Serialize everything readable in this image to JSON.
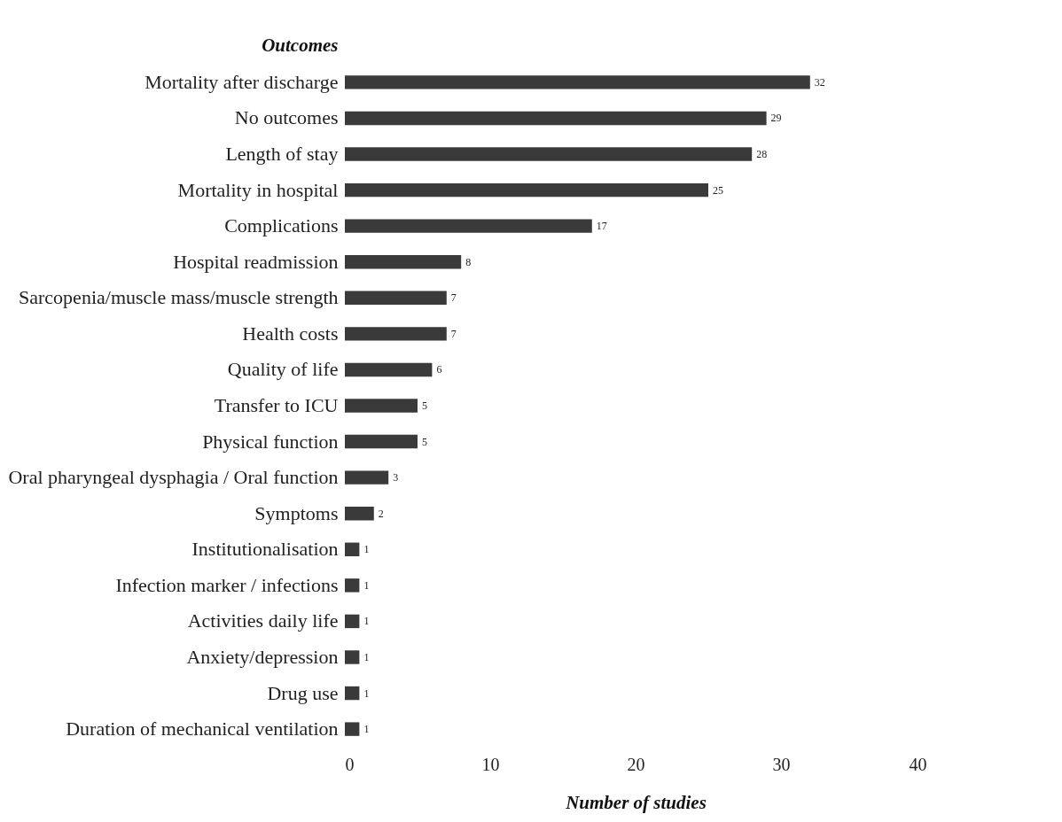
{
  "chart_data": {
    "type": "bar",
    "orientation": "horizontal",
    "ylabel": "Outcomes",
    "xlabel": "Number of studies",
    "categories": [
      "Mortality after discharge",
      "No outcomes",
      "Length of stay",
      "Mortality in hospital",
      "Complications",
      "Hospital readmission",
      "Sarcopenia/muscle mass/muscle strength",
      "Health costs",
      "Quality of life",
      "Transfer to ICU",
      "Physical function",
      "Oral pharyngeal dysphagia / Oral function",
      "Symptoms",
      "Institutionalisation",
      "Infection marker / infections",
      "Activities daily life",
      "Anxiety/depression",
      "Drug use",
      "Duration of mechanical ventilation"
    ],
    "values": [
      32,
      29,
      28,
      25,
      17,
      8,
      7,
      7,
      6,
      5,
      5,
      3,
      2,
      1,
      1,
      1,
      1,
      1,
      1
    ],
    "color": "#3a3a3a",
    "data_labels": true,
    "xlim": [
      0,
      40
    ],
    "xticks": [
      0,
      10,
      20,
      30,
      40
    ]
  }
}
